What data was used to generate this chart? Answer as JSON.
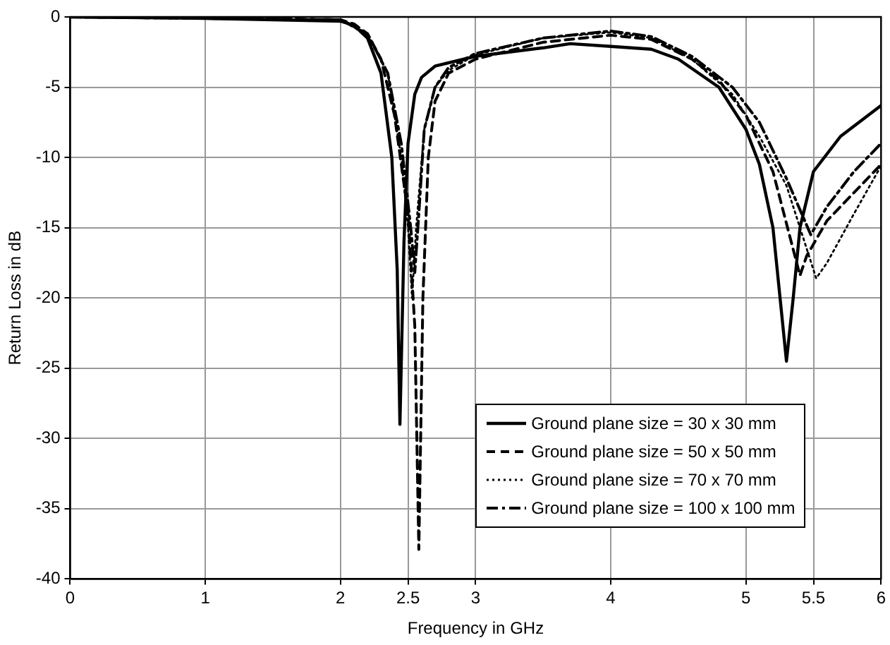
{
  "chart_data": {
    "type": "line",
    "xlabel": "Frequency in GHz",
    "ylabel": "Return Loss in dB",
    "xlim": [
      0,
      6
    ],
    "xticks": [
      0,
      1,
      2,
      2.5,
      3,
      4,
      5,
      5.5,
      6
    ],
    "ylim": [
      -40,
      0
    ],
    "yticks": [
      -40,
      -35,
      -30,
      -25,
      -20,
      -15,
      -10,
      -5,
      0
    ],
    "grid": true,
    "legend": "bottom right",
    "marker": "none",
    "series": [
      {
        "name": "Ground plane size = 30 x 30 mm",
        "color": "#000000",
        "line_style": "solid",
        "x": [
          0,
          1,
          1.5,
          2,
          2.1,
          2.2,
          2.3,
          2.38,
          2.42,
          2.44,
          2.47,
          2.5,
          2.55,
          2.6,
          2.7,
          3,
          3.5,
          3.7,
          4,
          4.3,
          4.5,
          4.8,
          5,
          5.1,
          5.2,
          5.3,
          5.35,
          5.4,
          5.5,
          5.7,
          6
        ],
        "values": [
          0,
          -0.1,
          -0.2,
          -0.3,
          -0.6,
          -1.5,
          -4,
          -10,
          -18,
          -29,
          -16,
          -9,
          -5.5,
          -4.3,
          -3.5,
          -2.8,
          -2.2,
          -1.9,
          -2.1,
          -2.3,
          -3,
          -5,
          -8,
          -10.5,
          -15,
          -24.5,
          -20,
          -15,
          -11,
          -8.5,
          -6.3
        ]
      },
      {
        "name": "Ground plane size = 50 x 50 mm",
        "color": "#000000",
        "line_style": "dashed",
        "x": [
          0,
          2,
          2.1,
          2.2,
          2.3,
          2.4,
          2.5,
          2.55,
          2.58,
          2.61,
          2.65,
          2.7,
          2.8,
          3,
          3.5,
          4,
          4.3,
          4.6,
          4.8,
          5,
          5.2,
          5.4,
          5.45,
          5.6,
          5.8,
          6
        ],
        "values": [
          0,
          -0.2,
          -0.5,
          -1.2,
          -3,
          -7,
          -14,
          -22,
          -37.9,
          -20,
          -10,
          -6,
          -4,
          -3,
          -1.8,
          -1.3,
          -1.6,
          -3,
          -4.5,
          -7,
          -11,
          -18.4,
          -17,
          -14.5,
          -12.5,
          -10.5
        ]
      },
      {
        "name": "Ground plane size = 70 x 70 mm",
        "color": "#000000",
        "line_style": "dotted",
        "x": [
          0,
          2,
          2.2,
          2.35,
          2.45,
          2.5,
          2.53,
          2.56,
          2.62,
          2.7,
          2.8,
          3,
          3.5,
          4,
          4.3,
          4.6,
          4.9,
          5.1,
          5.3,
          5.45,
          5.52,
          5.6,
          5.8,
          6
        ],
        "values": [
          0,
          -0.2,
          -1.3,
          -4,
          -10,
          -15,
          -20,
          -15,
          -8,
          -5,
          -3.8,
          -2.7,
          -1.5,
          -1.1,
          -1.5,
          -3,
          -5.5,
          -8.5,
          -12,
          -16.5,
          -18.6,
          -17.5,
          -14,
          -10.6
        ]
      },
      {
        "name": "Ground plane size = 100 x 100 mm",
        "color": "#000000",
        "line_style": "dashdot",
        "x": [
          0,
          2,
          2.2,
          2.35,
          2.45,
          2.52,
          2.55,
          2.58,
          2.62,
          2.7,
          2.8,
          3,
          3.5,
          4,
          4.3,
          4.6,
          4.9,
          5.1,
          5.3,
          5.48,
          5.6,
          5.8,
          6
        ],
        "values": [
          0,
          -0.2,
          -1.2,
          -4,
          -9,
          -15,
          -18.2,
          -14,
          -8,
          -5,
          -3.6,
          -2.6,
          -1.5,
          -1,
          -1.4,
          -2.8,
          -5,
          -7.5,
          -11.5,
          -15.5,
          -13.5,
          -11,
          -9
        ]
      }
    ]
  }
}
